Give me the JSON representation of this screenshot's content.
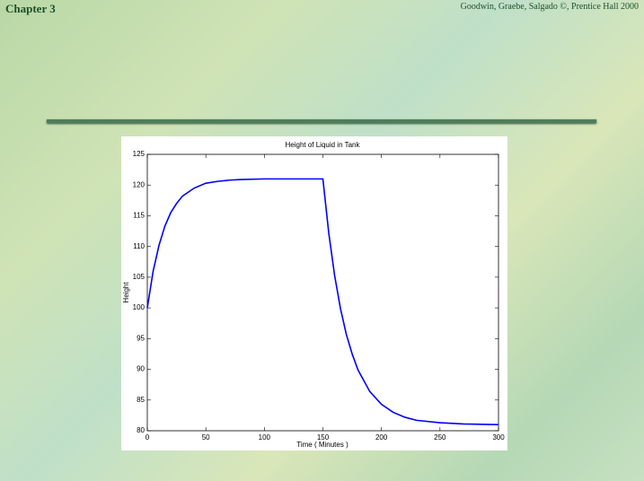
{
  "header": {
    "chapter": "Chapter 3",
    "credit": "Goodwin, Graebe, Salgado ©, Prentice Hall 2000"
  },
  "chart_data": {
    "type": "line",
    "title": "Height of Liquid in Tank",
    "x_label": "Time ( Minutes )",
    "y_label": "Height",
    "x": [
      0,
      5,
      10,
      15,
      20,
      25,
      30,
      40,
      50,
      60,
      70,
      80,
      100,
      150,
      155,
      160,
      165,
      170,
      175,
      180,
      190,
      200,
      210,
      220,
      230,
      250,
      270,
      300
    ],
    "series": [
      {
        "name": "Height",
        "color": "#0000ff",
        "values": [
          100,
          106.0,
          110.2,
          113.3,
          115.5,
          117.0,
          118.2,
          119.5,
          120.3,
          120.6,
          120.8,
          120.9,
          121.0,
          121.0,
          112.2,
          105.3,
          99.9,
          95.7,
          92.5,
          89.9,
          86.4,
          84.3,
          83.0,
          82.2,
          81.7,
          81.3,
          81.1,
          81.0
        ]
      }
    ],
    "xlim": [
      0,
      300
    ],
    "ylim": [
      80,
      125
    ],
    "xticks": [
      0,
      50,
      100,
      150,
      200,
      250,
      300
    ],
    "yticks": [
      80,
      85,
      90,
      95,
      100,
      105,
      110,
      115,
      120,
      125
    ]
  }
}
